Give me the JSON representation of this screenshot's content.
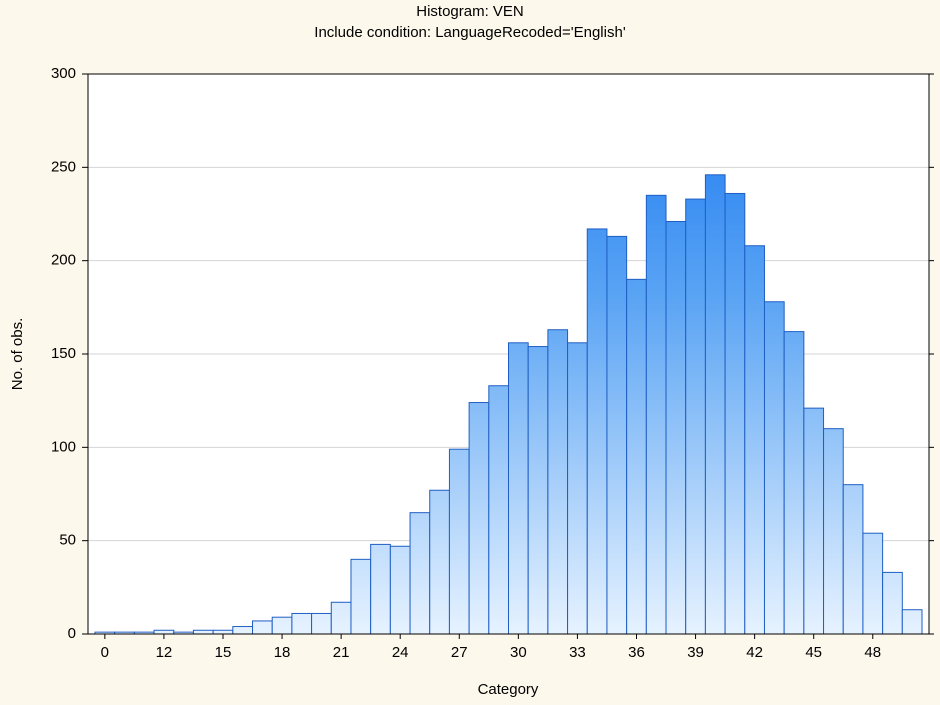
{
  "chart_data": {
    "type": "bar",
    "title": "Histogram: VEN",
    "subtitle": "Include condition: LanguageRecoded='English'",
    "x_label": "Category",
    "y_label": "No. of obs.",
    "categories": [
      "0",
      null,
      null,
      "12",
      null,
      null,
      "15",
      null,
      null,
      "18",
      null,
      null,
      "21",
      null,
      null,
      "24",
      null,
      null,
      "27",
      null,
      null,
      "30",
      null,
      null,
      "33",
      null,
      null,
      "36",
      null,
      null,
      "39",
      null,
      null,
      "42",
      null,
      null,
      "45",
      null,
      null,
      "48",
      null,
      null
    ],
    "values": [
      1,
      1,
      1,
      2,
      1,
      2,
      2,
      4,
      7,
      9,
      11,
      11,
      17,
      40,
      48,
      47,
      65,
      77,
      99,
      124,
      133,
      156,
      154,
      163,
      156,
      217,
      213,
      190,
      235,
      221,
      233,
      246,
      236,
      208,
      178,
      162,
      121,
      110,
      80,
      54,
      33,
      13
    ],
    "color": "#3a8ef0",
    "ylim": [
      0,
      300
    ],
    "yticks": [
      0,
      50,
      100,
      150,
      200,
      250,
      300
    ],
    "grid": true
  }
}
